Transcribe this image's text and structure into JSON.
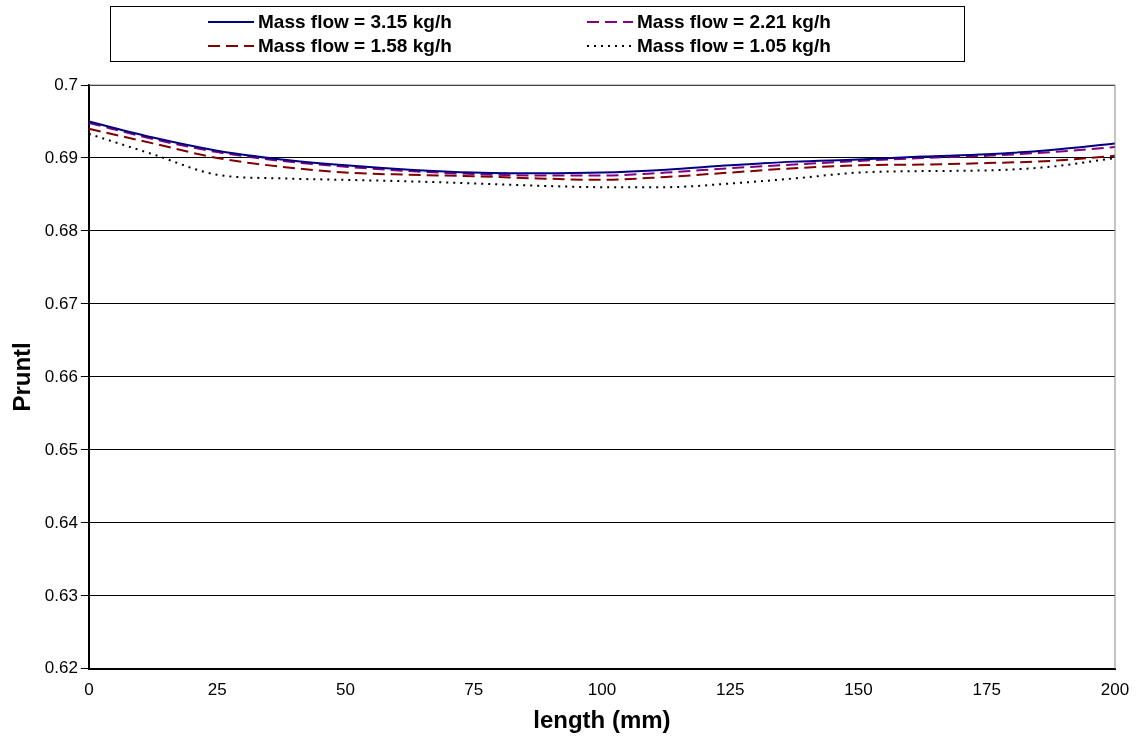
{
  "chart_data": {
    "type": "line",
    "xlabel": "length (mm)",
    "ylabel": "Pruntl",
    "xlim": [
      0,
      200
    ],
    "xticks": [
      0,
      25,
      50,
      75,
      100,
      125,
      150,
      175,
      200
    ],
    "ylim": [
      0.62,
      0.7
    ],
    "yticks": [
      0.62,
      0.63,
      0.64,
      0.65,
      0.66,
      0.67,
      0.68,
      0.69,
      0.7
    ],
    "grid": "y",
    "legend": "top",
    "marker": "none",
    "x": [
      0,
      12.5,
      25,
      37.5,
      50,
      62.5,
      75,
      87.5,
      100,
      112.5,
      125,
      137.5,
      150,
      162.5,
      175,
      187.5,
      200
    ],
    "series": [
      {
        "name": "Mass flow = 3.15 kg/h",
        "color": "#000080",
        "line_style": "solid",
        "values": [
          0.695,
          0.6928,
          0.691,
          0.6898,
          0.689,
          0.6884,
          0.688,
          0.6879,
          0.688,
          0.6884,
          0.689,
          0.6895,
          0.6898,
          0.6902,
          0.6905,
          0.6911,
          0.692
        ]
      },
      {
        "name": "Mass flow = 2.21 kg/h",
        "color": "#800080",
        "line_style": "dashed",
        "values": [
          0.6948,
          0.6926,
          0.6908,
          0.6896,
          0.6888,
          0.6882,
          0.6878,
          0.6876,
          0.6876,
          0.688,
          0.6886,
          0.6891,
          0.6896,
          0.69,
          0.6903,
          0.6908,
          0.6915
        ]
      },
      {
        "name": "Mass flow = 1.58 kg/h",
        "color": "#800000",
        "line_style": "dashed",
        "values": [
          0.694,
          0.692,
          0.69,
          0.6888,
          0.688,
          0.6877,
          0.6875,
          0.6872,
          0.687,
          0.6874,
          0.688,
          0.6886,
          0.689,
          0.6891,
          0.6893,
          0.6896,
          0.6903
        ]
      },
      {
        "name": "Mass flow = 1.05 kg/h",
        "color": "#000000",
        "line_style": "dotted",
        "values": [
          0.6933,
          0.6905,
          0.6877,
          0.6872,
          0.687,
          0.6868,
          0.6865,
          0.6862,
          0.686,
          0.686,
          0.6865,
          0.6872,
          0.688,
          0.6882,
          0.6883,
          0.6888,
          0.69
        ]
      }
    ]
  }
}
